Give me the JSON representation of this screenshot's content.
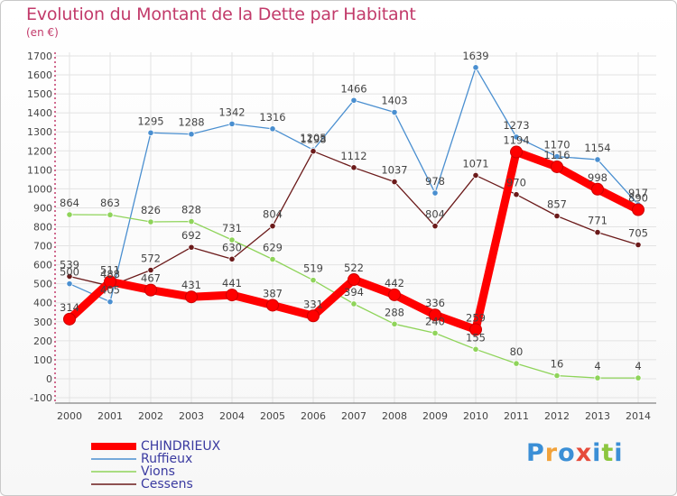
{
  "title": "Evolution du Montant de la Dette par Habitant",
  "unit": "(en €)",
  "logo": "Proxiti",
  "chart_data": {
    "type": "line",
    "categories": [
      "2000",
      "2001",
      "2002",
      "2003",
      "2004",
      "2005",
      "2006",
      "2007",
      "2008",
      "2009",
      "2010",
      "2011",
      "2012",
      "2013",
      "2014"
    ],
    "ylim": [
      -100,
      1700
    ],
    "yticks": [
      -100,
      0,
      100,
      200,
      300,
      400,
      500,
      600,
      700,
      800,
      900,
      1000,
      1100,
      1200,
      1300,
      1400,
      1500,
      1600,
      1700
    ],
    "grid": true,
    "legend_position": "bottom-left",
    "series": [
      {
        "name": "CHINDRIEUX",
        "color": "#ff0000",
        "values": [
          314,
          511,
          467,
          431,
          441,
          387,
          331,
          522,
          442,
          336,
          259,
          1194,
          1116,
          998,
          890
        ]
      },
      {
        "name": "Ruffieux",
        "color": "#4a8fd0",
        "values": [
          500,
          405,
          1295,
          1288,
          1342,
          1316,
          1205,
          1466,
          1403,
          978,
          1639,
          1273,
          1170,
          1154,
          917
        ]
      },
      {
        "name": "Vions",
        "color": "#8fd45a",
        "values": [
          864,
          863,
          826,
          828,
          731,
          629,
          519,
          394,
          288,
          240,
          155,
          80,
          16,
          4,
          4
        ]
      },
      {
        "name": "Cessens",
        "color": "#6b1a1a",
        "values": [
          539,
          488,
          572,
          692,
          630,
          804,
          1198,
          1112,
          1037,
          804,
          1071,
          970,
          857,
          771,
          705
        ]
      }
    ]
  }
}
